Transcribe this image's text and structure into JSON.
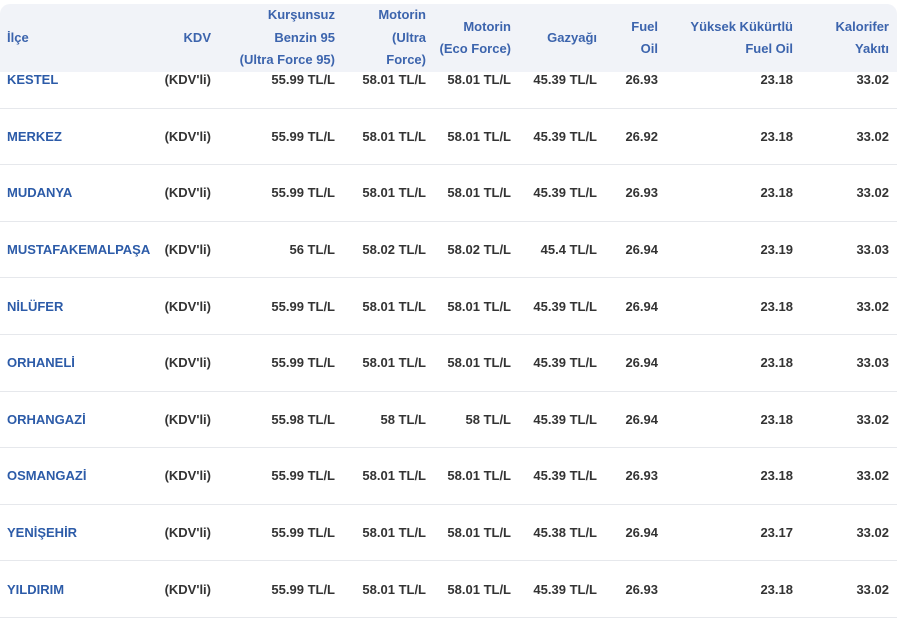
{
  "columns": [
    "İlçe",
    "KDV",
    "Kurşunsuz\nBenzin 95\n(Ultra Force 95)",
    "Motorin\n(Ultra\nForce)",
    "Motorin\n(Eco Force)",
    "Gazyağı",
    "Fuel\nOil",
    "Yüksek Kükürtlü\nFuel Oil",
    "Kalorifer\nYakıtı"
  ],
  "rows": [
    [
      "KESTEL",
      "(KDV'li)",
      "55.99 TL/L",
      "58.01 TL/L",
      "58.01 TL/L",
      "45.39 TL/L",
      "26.93",
      "23.18",
      "33.02"
    ],
    [
      "MERKEZ",
      "(KDV'li)",
      "55.99 TL/L",
      "58.01 TL/L",
      "58.01 TL/L",
      "45.39 TL/L",
      "26.92",
      "23.18",
      "33.02"
    ],
    [
      "MUDANYA",
      "(KDV'li)",
      "55.99 TL/L",
      "58.01 TL/L",
      "58.01 TL/L",
      "45.39 TL/L",
      "26.93",
      "23.18",
      "33.02"
    ],
    [
      "MUSTAFAKEMALPAŞA",
      "(KDV'li)",
      "56 TL/L",
      "58.02 TL/L",
      "58.02 TL/L",
      "45.4 TL/L",
      "26.94",
      "23.19",
      "33.03"
    ],
    [
      "NİLÜFER",
      "(KDV'li)",
      "55.99 TL/L",
      "58.01 TL/L",
      "58.01 TL/L",
      "45.39 TL/L",
      "26.94",
      "23.18",
      "33.02"
    ],
    [
      "ORHANELİ",
      "(KDV'li)",
      "55.99 TL/L",
      "58.01 TL/L",
      "58.01 TL/L",
      "45.39 TL/L",
      "26.94",
      "23.18",
      "33.03"
    ],
    [
      "ORHANGAZİ",
      "(KDV'li)",
      "55.98 TL/L",
      "58 TL/L",
      "58 TL/L",
      "45.39 TL/L",
      "26.94",
      "23.18",
      "33.02"
    ],
    [
      "OSMANGAZİ",
      "(KDV'li)",
      "55.99 TL/L",
      "58.01 TL/L",
      "58.01 TL/L",
      "45.39 TL/L",
      "26.93",
      "23.18",
      "33.02"
    ],
    [
      "YENİŞEHİR",
      "(KDV'li)",
      "55.99 TL/L",
      "58.01 TL/L",
      "58.01 TL/L",
      "45.38 TL/L",
      "26.94",
      "23.17",
      "33.02"
    ],
    [
      "YILDIRIM",
      "(KDV'li)",
      "55.99 TL/L",
      "58.01 TL/L",
      "58.01 TL/L",
      "45.39 TL/L",
      "26.93",
      "23.18",
      "33.02"
    ]
  ]
}
